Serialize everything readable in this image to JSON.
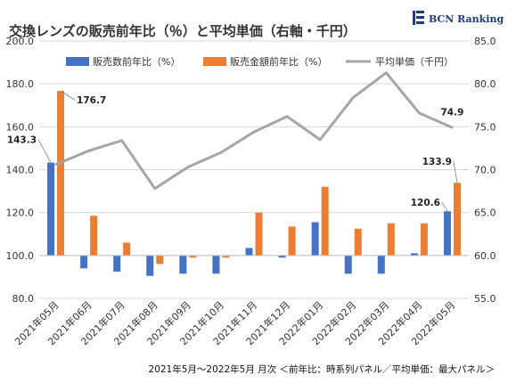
{
  "chart_data": {
    "type": "bar",
    "title": "交換レンズの販売前年比（％）と平均単価（右軸・千円）",
    "logo": "BCN Ranking",
    "categories": [
      "2021年05月",
      "2021年06月",
      "2021年07月",
      "2021年08月",
      "2021年09月",
      "2021年10月",
      "2021年11月",
      "2021年12月",
      "2022年01月",
      "2022年02月",
      "2022年03月",
      "2022年04月",
      "2022年05月"
    ],
    "series": [
      {
        "name": "販売数前年比（%）",
        "axis": "left",
        "color": "#4472c4",
        "values": [
          143.3,
          94.0,
          92.5,
          90.5,
          91.5,
          91.5,
          103.5,
          99.0,
          115.5,
          91.5,
          91.5,
          101.0,
          120.6
        ]
      },
      {
        "name": "販売金額前年比（%）",
        "axis": "left",
        "color": "#ed7d31",
        "values": [
          176.7,
          118.5,
          106.0,
          96.0,
          99.0,
          99.0,
          120.0,
          113.5,
          132.0,
          112.5,
          115.0,
          115.0,
          133.9
        ]
      },
      {
        "name": "平均単価（千円）",
        "axis": "right",
        "type": "line",
        "color": "#a6a6a6",
        "values": [
          70.6,
          72.2,
          73.4,
          67.8,
          70.3,
          72.0,
          74.4,
          76.2,
          73.5,
          78.4,
          81.3,
          76.6,
          74.9
        ]
      }
    ],
    "yleft": {
      "min": 80,
      "max": 200,
      "ticks": [
        "80.0",
        "100.0",
        "120.0",
        "140.0",
        "160.0",
        "180.0",
        "200.0"
      ]
    },
    "yright": {
      "min": 55,
      "max": 85,
      "ticks": [
        "55.0",
        "60.0",
        "65.0",
        "70.0",
        "75.0",
        "80.0",
        "85.0"
      ]
    },
    "baseline": 100,
    "data_labels": [
      {
        "series": 0,
        "index": 0,
        "text": "143.3"
      },
      {
        "series": 1,
        "index": 0,
        "text": "176.7"
      },
      {
        "series": 0,
        "index": 12,
        "text": "120.6"
      },
      {
        "series": 1,
        "index": 12,
        "text": "133.9"
      },
      {
        "series": 2,
        "index": 12,
        "text": "74.9"
      }
    ],
    "legend_position": "top",
    "footnote": "2021年5月～2022年5月 月次 ＜前年比：時系列パネル／平均単価：最大パネル＞"
  }
}
